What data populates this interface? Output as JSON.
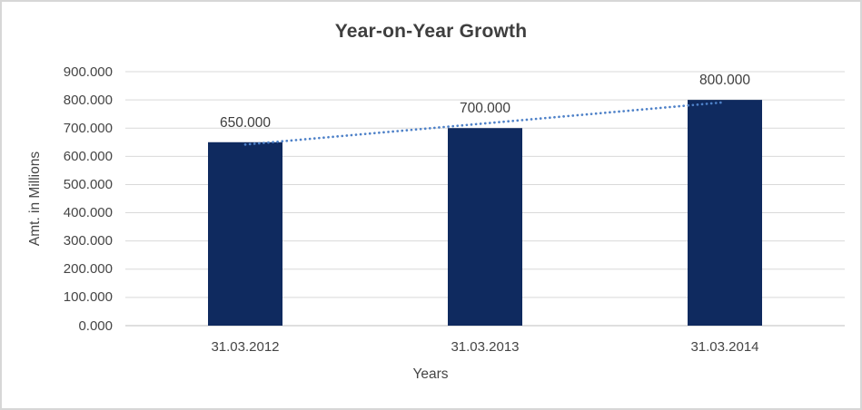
{
  "frame": {
    "background": "#FFFFFF",
    "border_color": "#D7D7D7"
  },
  "chart_data": {
    "type": "bar",
    "title": "Year-on-Year Growth",
    "xlabel": "Years",
    "ylabel": "Amt. in Millions",
    "categories": [
      "31.03.2012",
      "31.03.2013",
      "31.03.2014"
    ],
    "values": [
      650,
      700,
      800
    ],
    "value_labels": [
      "650.000",
      "700.000",
      "800.000"
    ],
    "ylim": [
      0,
      900
    ],
    "ytick_step": 100,
    "ytick_labels": [
      "0.000",
      "100.000",
      "200.000",
      "300.000",
      "400.000",
      "500.000",
      "600.000",
      "700.000",
      "800.000",
      "900.000"
    ],
    "grid": true,
    "legend": "none",
    "trendline": {
      "type": "linear",
      "style": "dotted",
      "points": [
        641.67,
        716.67,
        791.67
      ]
    },
    "colors": {
      "bar": "#0F2A5F",
      "trendline": "#4E81C8",
      "gridline": "#D9D9D9",
      "axis_line": "#BFBFBF",
      "title_text": "#3E3E3E",
      "axis_text": "#454545"
    }
  }
}
